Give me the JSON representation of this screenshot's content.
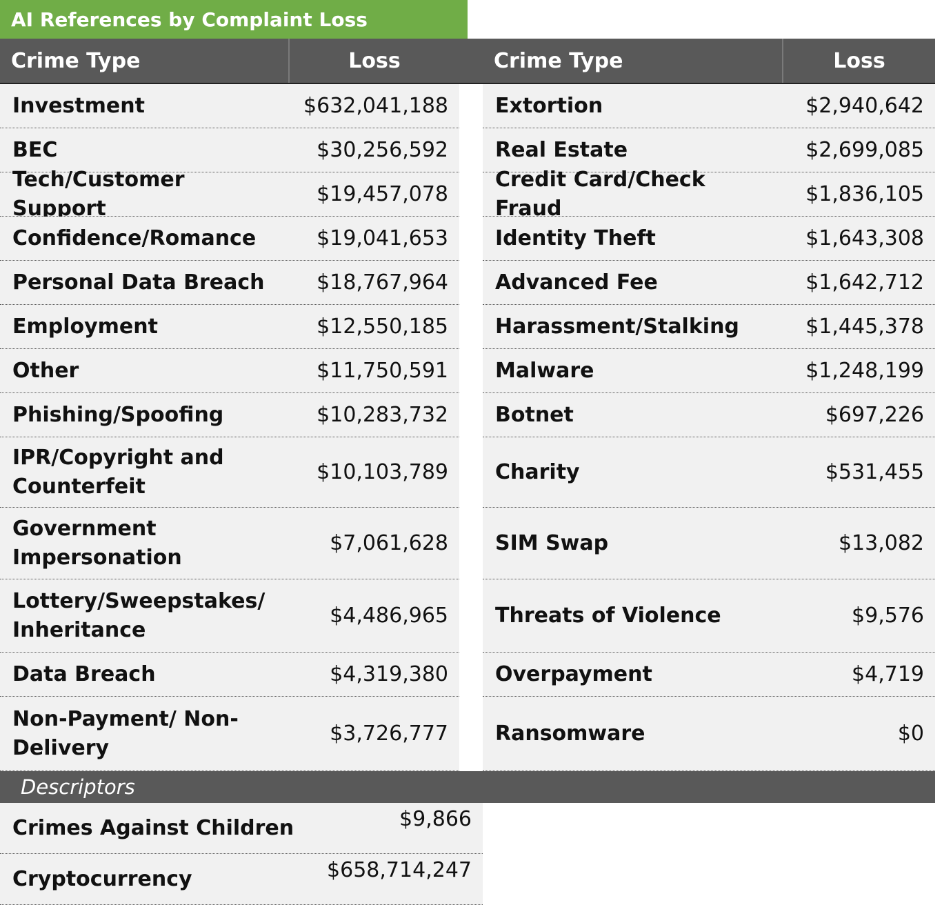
{
  "title": "AI References by Complaint Loss",
  "headers": {
    "crime_type": "Crime Type",
    "loss": "Loss"
  },
  "left": [
    {
      "name": "Investment",
      "loss": "$632,041,188"
    },
    {
      "name": "BEC",
      "loss": "$30,256,592"
    },
    {
      "name": "Tech/Customer Support",
      "loss": "$19,457,078"
    },
    {
      "name": "Confidence/Romance",
      "loss": "$19,041,653"
    },
    {
      "name": "Personal Data Breach",
      "loss": "$18,767,964"
    },
    {
      "name": "Employment",
      "loss": "$12,550,185"
    },
    {
      "name": "Other",
      "loss": "$11,750,591"
    },
    {
      "name": "Phishing/Spoofing",
      "loss": "$10,283,732"
    },
    {
      "name": "IPR/Copyright and Counterfeit",
      "loss": "$10,103,789"
    },
    {
      "name": "Government Impersonation",
      "loss": "$7,061,628"
    },
    {
      "name": "Lottery/Sweepstakes/ Inheritance",
      "loss": "$4,486,965"
    },
    {
      "name": "Data Breach",
      "loss": "$4,319,380"
    },
    {
      "name": "Non-Payment/ Non-Delivery",
      "loss": "$3,726,777"
    }
  ],
  "right": [
    {
      "name": "Extortion",
      "loss": "$2,940,642"
    },
    {
      "name": "Real Estate",
      "loss": "$2,699,085"
    },
    {
      "name": "Credit Card/Check Fraud",
      "loss": "$1,836,105"
    },
    {
      "name": "Identity Theft",
      "loss": "$1,643,308"
    },
    {
      "name": "Advanced Fee",
      "loss": "$1,642,712"
    },
    {
      "name": "Harassment/Stalking",
      "loss": "$1,445,378"
    },
    {
      "name": "Malware",
      "loss": "$1,248,199"
    },
    {
      "name": "Botnet",
      "loss": "$697,226"
    },
    {
      "name": "Charity",
      "loss": "$531,455"
    },
    {
      "name": "SIM Swap",
      "loss": "$13,082"
    },
    {
      "name": "Threats of Violence",
      "loss": "$9,576"
    },
    {
      "name": "Overpayment",
      "loss": "$4,719"
    },
    {
      "name": "Ransomware",
      "loss": "$0"
    }
  ],
  "descriptors": {
    "label": "Descriptors",
    "rows": [
      {
        "name": "Crimes Against Children",
        "loss": "$9,866"
      },
      {
        "name": "Cryptocurrency",
        "loss": "$658,714,247"
      }
    ]
  }
}
